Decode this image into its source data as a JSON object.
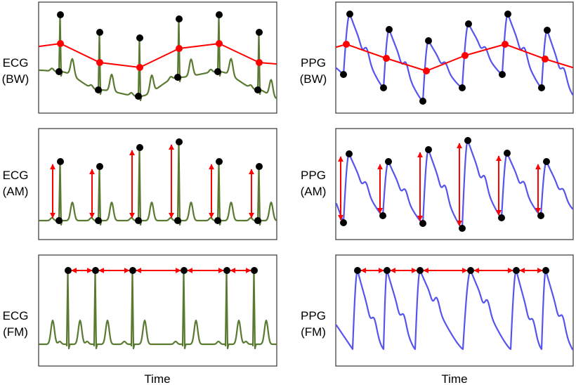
{
  "panels": [
    {
      "signal": "ECG",
      "modulation": "(BW)"
    },
    {
      "signal": "PPG",
      "modulation": "(BW)"
    },
    {
      "signal": "ECG",
      "modulation": "(AM)"
    },
    {
      "signal": "PPG",
      "modulation": "(AM)"
    },
    {
      "signal": "ECG",
      "modulation": "(FM)"
    },
    {
      "signal": "PPG",
      "modulation": "(FM)"
    }
  ],
  "x_axis_label_left": "Time",
  "x_axis_label_right": "Time",
  "colors": {
    "ecg": "#5a7a32",
    "ppg": "#5555ee",
    "annotation": "#ff0000",
    "fiducial": "#000000",
    "frame": "#444444"
  }
}
